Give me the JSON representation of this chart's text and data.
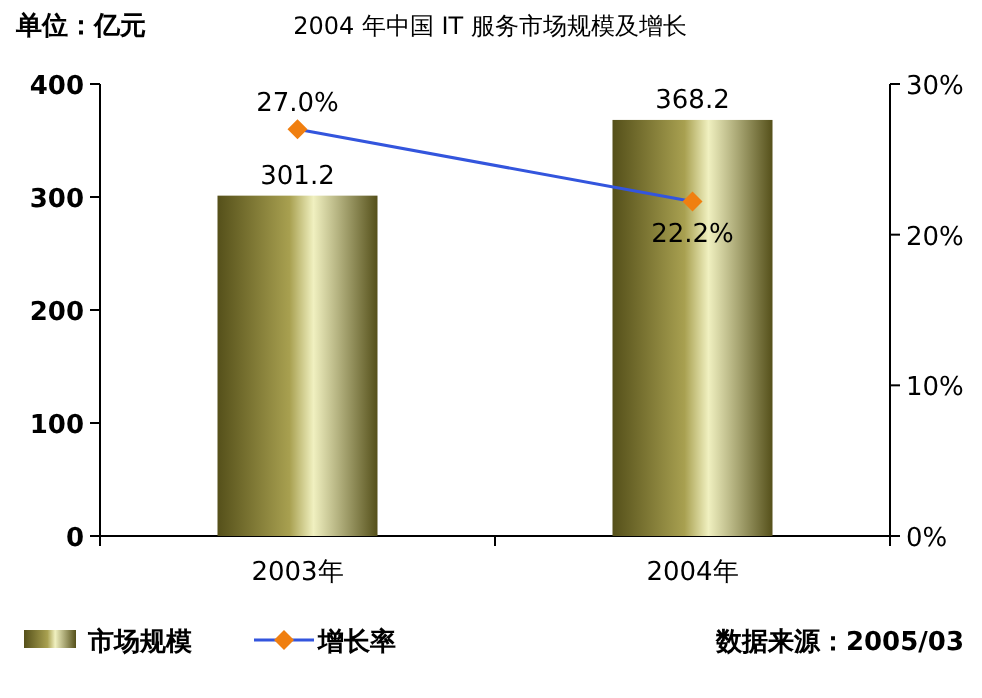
{
  "chart_data": {
    "type": "bar",
    "title": "2004 年中国 IT 服务市场规模及增长",
    "ylabel": "单位：亿元",
    "categories": [
      "2003年",
      "2004年"
    ],
    "series": [
      {
        "name": "市场规模",
        "color": "#a8a050",
        "values": [
          301.2,
          368.2
        ],
        "value_labels": [
          "301.2",
          "368.2"
        ]
      },
      {
        "name": "增长率",
        "type": "line",
        "axis": "y2",
        "color": "#3355dd",
        "marker": "diamond",
        "values": [
          27.0,
          22.2
        ],
        "value_labels": [
          "27.0%",
          "22.2%"
        ]
      }
    ],
    "ylim": [
      0,
      400
    ],
    "yticks": [
      0,
      100,
      200,
      300,
      400
    ],
    "y2lim": [
      0,
      30
    ],
    "y2ticks": [
      {
        "value": 0,
        "label": "0%"
      },
      {
        "value": 10,
        "label": "10%"
      },
      {
        "value": 20,
        "label": "20%"
      },
      {
        "value": 30,
        "label": "30%"
      }
    ],
    "legend": "bottom left",
    "grid": false,
    "annotations": [
      "数据来源：2005/03"
    ]
  }
}
